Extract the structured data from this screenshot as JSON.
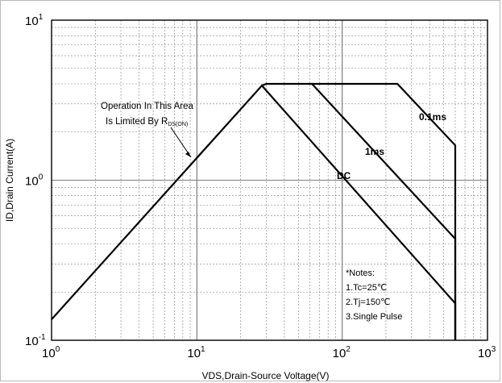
{
  "chart_data": {
    "type": "line",
    "xscale": "log",
    "yscale": "log",
    "xlim": [
      1,
      1000
    ],
    "ylim": [
      0.1,
      10
    ],
    "xlabel": "VDS,Drain-Source Voltage(V)",
    "ylabel": "ID,Drain Current(A)",
    "x_ticks": [
      {
        "base": "10",
        "exp": "0"
      },
      {
        "base": "10",
        "exp": "1"
      },
      {
        "base": "10",
        "exp": "2"
      },
      {
        "base": "10",
        "exp": "3"
      }
    ],
    "y_ticks": [
      {
        "base": "10",
        "exp": "-1"
      },
      {
        "base": "10",
        "exp": "0"
      },
      {
        "base": "10",
        "exp": "1"
      }
    ],
    "series": [
      {
        "name": "DC",
        "points": [
          [
            1,
            0.135
          ],
          [
            28,
            3.9
          ],
          [
            600,
            0.17
          ],
          [
            600,
            0.1
          ]
        ]
      },
      {
        "name": "1ms",
        "points": [
          [
            28,
            3.9
          ],
          [
            30,
            4.0
          ],
          [
            62,
            4.0
          ],
          [
            600,
            0.43
          ],
          [
            600,
            0.1
          ]
        ]
      },
      {
        "name": "0.1ms",
        "points": [
          [
            62,
            4.0
          ],
          [
            240,
            4.0
          ],
          [
            600,
            1.65
          ],
          [
            600,
            0.1
          ]
        ]
      }
    ],
    "annotations": {
      "region_line1": "Operation In This Area",
      "region_line2_prefix": "Is Limited By R",
      "region_line2_sub": "DS(ON)"
    },
    "notes": [
      "*Notes:",
      "1.Tc=25℃",
      "2.Tj=150℃",
      "3.Single Pulse"
    ]
  }
}
